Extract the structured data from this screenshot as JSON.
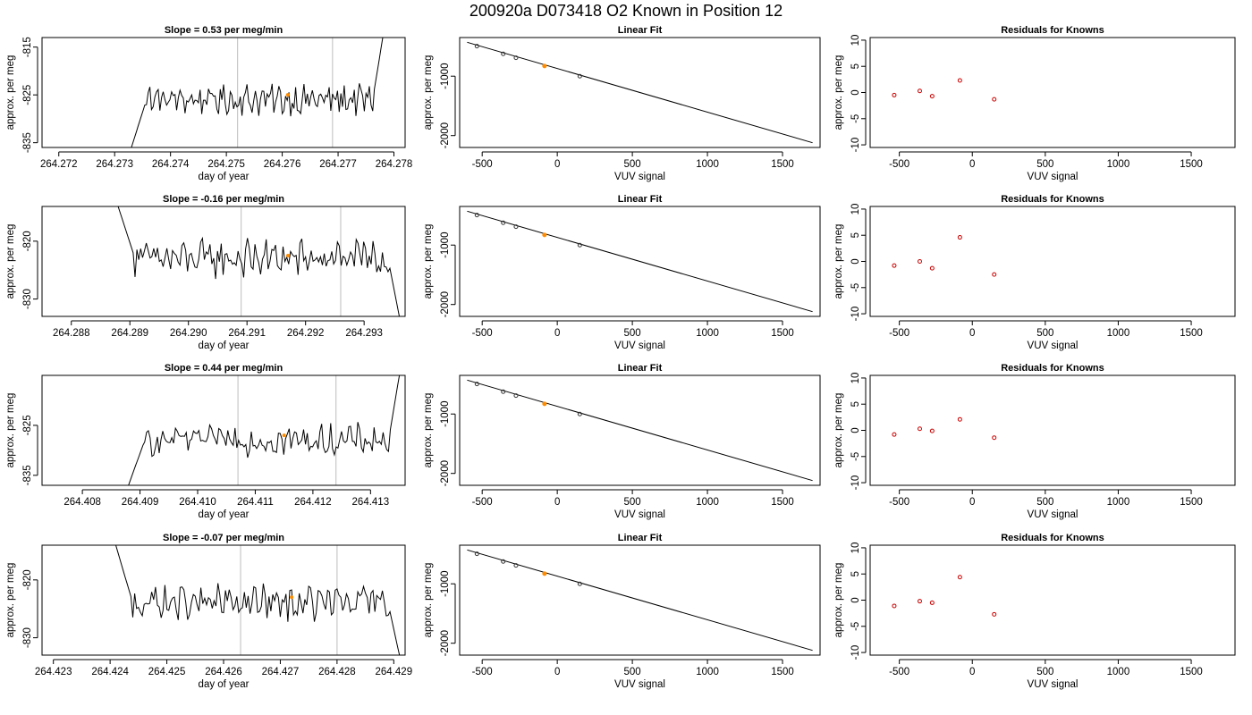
{
  "header": {
    "title": "200920a     D073418   O2 Known in Position  12"
  },
  "colors": {
    "trace": "#000000",
    "marker": "#ff8c00",
    "residual_points": "#cc0000",
    "vertical_lines": "#c8c8c8",
    "frame": "#000000"
  },
  "chart_data": [
    {
      "type": "line",
      "row": 1,
      "title": "Slope =  0.53  per meg/min",
      "xlabel": "day of year",
      "ylabel": "approx. per meg",
      "xlim": [
        264.2717,
        264.2782
      ],
      "ylim": [
        -836,
        -813
      ],
      "xticks": [
        "264.272",
        "264.273",
        "264.274",
        "264.275",
        "264.276",
        "264.277",
        "264.278"
      ],
      "yticks": [
        "-815",
        "-825",
        "-835"
      ],
      "vlines": [
        264.2752,
        264.2769
      ],
      "trace_x_range": [
        264.2733,
        264.2778
      ],
      "trace_baseline": -826,
      "trace_start": -836,
      "trace_end": -813,
      "marker": {
        "x": 264.2761,
        "y": -825
      }
    },
    {
      "type": "line",
      "row": 2,
      "title": "Slope =  -0.16  per meg/min",
      "xlabel": "day of year",
      "ylabel": "approx. per meg",
      "xlim": [
        264.2875,
        264.2937
      ],
      "ylim": [
        -833,
        -814
      ],
      "xticks": [
        "264.288",
        "264.289",
        "264.290",
        "264.291",
        "264.292",
        "264.293"
      ],
      "yticks": [
        "-820",
        "-830"
      ],
      "vlines": [
        264.2909,
        264.2926
      ],
      "trace_x_range": [
        264.2888,
        264.2936
      ],
      "trace_baseline": -823,
      "trace_start": -814,
      "trace_end": -833,
      "marker": {
        "x": 264.2917,
        "y": -822.5
      }
    },
    {
      "type": "line",
      "row": 3,
      "title": "Slope =  0.44  per meg/min",
      "xlabel": "day of year",
      "ylabel": "approx. per meg",
      "xlim": [
        264.4073,
        264.4136
      ],
      "ylim": [
        -837,
        -815
      ],
      "xticks": [
        "264.408",
        "264.409",
        "264.410",
        "264.411",
        "264.412",
        "264.413"
      ],
      "yticks": [
        "-825",
        "-835"
      ],
      "vlines": [
        264.4107,
        264.4124
      ],
      "trace_x_range": [
        264.4088,
        264.4135
      ],
      "trace_baseline": -828,
      "trace_start": -837,
      "trace_end": -815,
      "marker": {
        "x": 264.4115,
        "y": -827
      }
    },
    {
      "type": "line",
      "row": 4,
      "title": "Slope =  -0.07  per meg/min",
      "xlabel": "day of year",
      "ylabel": "approx. per meg",
      "xlim": [
        264.4228,
        264.4292
      ],
      "ylim": [
        -833,
        -814
      ],
      "xticks": [
        "264.423",
        "264.424",
        "264.425",
        "264.426",
        "264.427",
        "264.428",
        "264.429"
      ],
      "yticks": [
        "-820",
        "-830"
      ],
      "vlines": [
        264.4263,
        264.428
      ],
      "trace_x_range": [
        264.4241,
        264.4291
      ],
      "trace_baseline": -824,
      "trace_start": -814,
      "trace_end": -833,
      "marker": {
        "x": 264.4272,
        "y": -823
      }
    },
    {
      "type": "scatter",
      "row": 1,
      "title": "Linear Fit",
      "xlabel": "VUV signal",
      "ylabel": "approx. per meg",
      "xlim": [
        -650,
        1750
      ],
      "ylim": [
        -2200,
        -350
      ],
      "xticks": [
        "-500",
        "0",
        "500",
        "1000",
        "1500"
      ],
      "yticks": [
        "-1000",
        "-2000"
      ],
      "fit_line": {
        "x": [
          -600,
          1700
        ],
        "y": [
          -430,
          -2120
        ]
      },
      "points": {
        "x": [
          -535,
          -360,
          -275,
          -85,
          150
        ],
        "y": [
          -495,
          -625,
          -690,
          -830,
          -1000
        ]
      },
      "highlight_index": 3
    },
    {
      "type": "scatter",
      "row": 2,
      "title": "Linear Fit",
      "xlabel": "VUV signal",
      "ylabel": "approx. per meg",
      "xlim": [
        -650,
        1750
      ],
      "ylim": [
        -2200,
        -350
      ],
      "xticks": [
        "-500",
        "0",
        "500",
        "1000",
        "1500"
      ],
      "yticks": [
        "-1000",
        "-2000"
      ],
      "fit_line": {
        "x": [
          -600,
          1700
        ],
        "y": [
          -430,
          -2120
        ]
      },
      "points": {
        "x": [
          -535,
          -360,
          -275,
          -85,
          150
        ],
        "y": [
          -495,
          -625,
          -690,
          -830,
          -1000
        ]
      },
      "highlight_index": 3
    },
    {
      "type": "scatter",
      "row": 3,
      "title": "Linear Fit",
      "xlabel": "VUV signal",
      "ylabel": "approx. per meg",
      "xlim": [
        -650,
        1750
      ],
      "ylim": [
        -2200,
        -350
      ],
      "xticks": [
        "-500",
        "0",
        "500",
        "1000",
        "1500"
      ],
      "yticks": [
        "-1000",
        "-2000"
      ],
      "fit_line": {
        "x": [
          -600,
          1700
        ],
        "y": [
          -430,
          -2120
        ]
      },
      "points": {
        "x": [
          -535,
          -360,
          -275,
          -85,
          150
        ],
        "y": [
          -495,
          -625,
          -690,
          -830,
          -1000
        ]
      },
      "highlight_index": 3
    },
    {
      "type": "scatter",
      "row": 4,
      "title": "Linear Fit",
      "xlabel": "VUV signal",
      "ylabel": "approx. per meg",
      "xlim": [
        -650,
        1750
      ],
      "ylim": [
        -2200,
        -350
      ],
      "xticks": [
        "-500",
        "0",
        "500",
        "1000",
        "1500"
      ],
      "yticks": [
        "-1000",
        "-2000"
      ],
      "fit_line": {
        "x": [
          -600,
          1700
        ],
        "y": [
          -430,
          -2120
        ]
      },
      "points": {
        "x": [
          -535,
          -360,
          -275,
          -85,
          150
        ],
        "y": [
          -495,
          -625,
          -690,
          -830,
          -1000
        ]
      },
      "highlight_index": 3
    },
    {
      "type": "scatter",
      "row": 1,
      "title": "Residuals for Knowns",
      "xlabel": "VUV signal",
      "ylabel": "approx. per meg",
      "xlim": [
        -700,
        1800
      ],
      "ylim": [
        -10.5,
        10.5
      ],
      "xticks": [
        "-500",
        "0",
        "500",
        "1000",
        "1500"
      ],
      "yticks": [
        "-10",
        "-5",
        "0",
        "5",
        "10"
      ],
      "points": {
        "x": [
          -535,
          -360,
          -275,
          -85,
          150
        ],
        "y": [
          -0.5,
          0.3,
          -0.7,
          2.3,
          -1.3
        ]
      }
    },
    {
      "type": "scatter",
      "row": 2,
      "title": "Residuals for Knowns",
      "xlabel": "VUV signal",
      "ylabel": "approx. per meg",
      "xlim": [
        -700,
        1800
      ],
      "ylim": [
        -10.5,
        10.5
      ],
      "xticks": [
        "-500",
        "0",
        "500",
        "1000",
        "1500"
      ],
      "yticks": [
        "-10",
        "-5",
        "0",
        "5",
        "10"
      ],
      "points": {
        "x": [
          -535,
          -360,
          -275,
          -85,
          150
        ],
        "y": [
          -0.8,
          0.0,
          -1.3,
          4.6,
          -2.5
        ]
      }
    },
    {
      "type": "scatter",
      "row": 3,
      "title": "Residuals for Knowns",
      "xlabel": "VUV signal",
      "ylabel": "approx. per meg",
      "xlim": [
        -700,
        1800
      ],
      "ylim": [
        -10.5,
        10.5
      ],
      "xticks": [
        "-500",
        "0",
        "500",
        "1000",
        "1500"
      ],
      "yticks": [
        "-10",
        "-5",
        "0",
        "5",
        "10"
      ],
      "points": {
        "x": [
          -535,
          -360,
          -275,
          -85,
          150
        ],
        "y": [
          -0.8,
          0.3,
          -0.1,
          2.1,
          -1.4
        ]
      }
    },
    {
      "type": "scatter",
      "row": 4,
      "title": "Residuals for Knowns",
      "xlabel": "VUV signal",
      "ylabel": "approx. per meg",
      "xlim": [
        -700,
        1800
      ],
      "ylim": [
        -10.5,
        10.5
      ],
      "xticks": [
        "-500",
        "0",
        "500",
        "1000",
        "1500"
      ],
      "yticks": [
        "-10",
        "-5",
        "0",
        "5",
        "10"
      ],
      "points": {
        "x": [
          -535,
          -360,
          -275,
          -85,
          150
        ],
        "y": [
          -1.1,
          -0.2,
          -0.5,
          4.4,
          -2.7
        ]
      }
    }
  ]
}
